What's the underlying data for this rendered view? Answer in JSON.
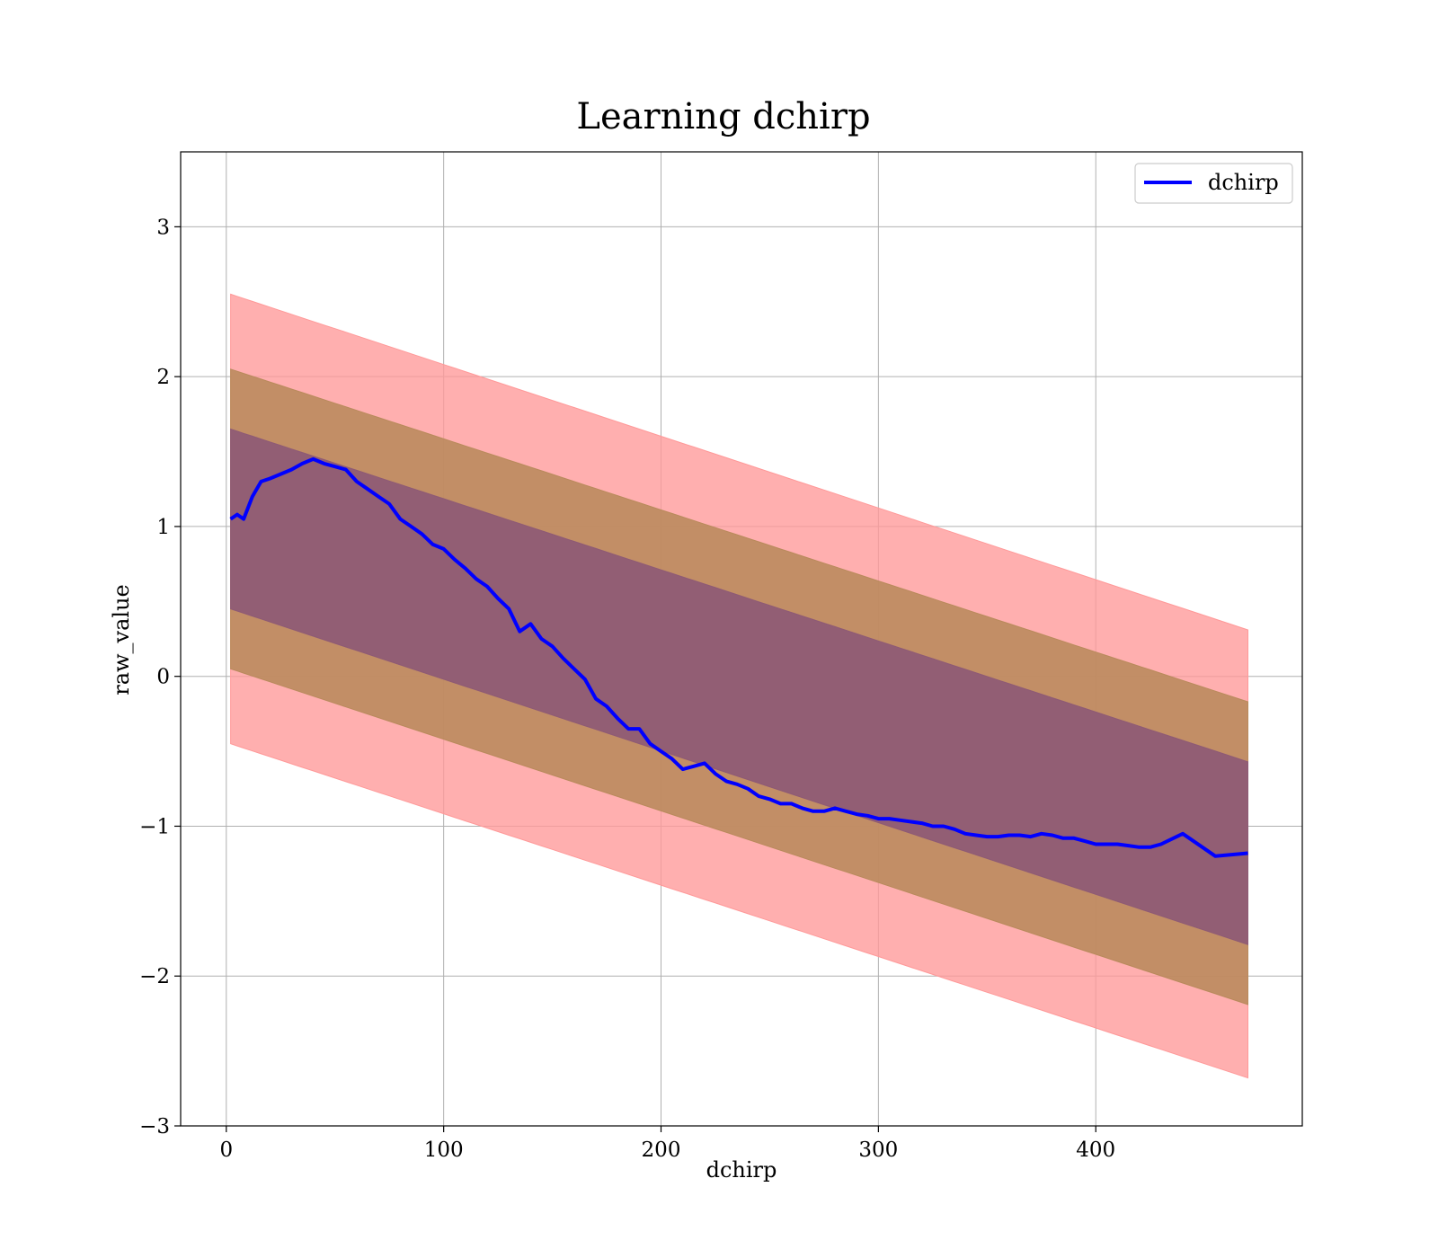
{
  "chart_data": {
    "type": "line",
    "title": "Learning dchirp",
    "xlabel": "dchirp",
    "ylabel": "raw_value",
    "xlim": [
      -21,
      495
    ],
    "ylim": [
      -3,
      3.5
    ],
    "xticks": [
      0,
      100,
      200,
      300,
      400
    ],
    "yticks": [
      -3,
      -2,
      -1,
      0,
      1,
      2,
      3
    ],
    "xtick_labels": [
      "0",
      "100",
      "200",
      "300",
      "400"
    ],
    "ytick_labels": [
      "−3",
      "−2",
      "−1",
      "0",
      "1",
      "2",
      "3"
    ],
    "grid": true,
    "legend": {
      "position": "top-right",
      "entries": [
        "dchirp"
      ]
    },
    "colors": {
      "mean_line": "#0000ff",
      "band_outer": "#ff9999",
      "band_middle": "#b98a5c",
      "band_inner": "#8e5a75"
    },
    "series": [
      {
        "name": "dchirp",
        "x": [
          2,
          5,
          8,
          12,
          16,
          20,
          25,
          30,
          35,
          40,
          45,
          50,
          55,
          60,
          65,
          70,
          75,
          80,
          85,
          90,
          95,
          100,
          105,
          110,
          115,
          120,
          125,
          130,
          135,
          140,
          145,
          150,
          155,
          160,
          165,
          170,
          175,
          180,
          185,
          190,
          195,
          200,
          205,
          210,
          215,
          220,
          225,
          230,
          235,
          240,
          245,
          250,
          255,
          260,
          265,
          270,
          275,
          280,
          285,
          290,
          295,
          300,
          305,
          310,
          315,
          320,
          325,
          330,
          335,
          340,
          345,
          350,
          355,
          360,
          365,
          370,
          375,
          380,
          385,
          390,
          395,
          400,
          405,
          410,
          415,
          420,
          425,
          430,
          440,
          455,
          470
        ],
        "y": [
          1.05,
          1.08,
          1.05,
          1.2,
          1.3,
          1.32,
          1.35,
          1.38,
          1.42,
          1.45,
          1.42,
          1.4,
          1.38,
          1.3,
          1.25,
          1.2,
          1.15,
          1.05,
          1.0,
          0.95,
          0.88,
          0.85,
          0.78,
          0.72,
          0.65,
          0.6,
          0.52,
          0.45,
          0.3,
          0.35,
          0.25,
          0.2,
          0.12,
          0.05,
          -0.02,
          -0.15,
          -0.2,
          -0.28,
          -0.35,
          -0.35,
          -0.45,
          -0.5,
          -0.55,
          -0.62,
          -0.6,
          -0.58,
          -0.65,
          -0.7,
          -0.72,
          -0.75,
          -0.8,
          -0.82,
          -0.85,
          -0.85,
          -0.88,
          -0.9,
          -0.9,
          -0.88,
          -0.9,
          -0.92,
          -0.93,
          -0.95,
          -0.95,
          -0.96,
          -0.97,
          -0.98,
          -1.0,
          -1.0,
          -1.02,
          -1.05,
          -1.06,
          -1.07,
          -1.07,
          -1.06,
          -1.06,
          -1.07,
          -1.05,
          -1.06,
          -1.08,
          -1.08,
          -1.1,
          -1.12,
          -1.12,
          -1.12,
          -1.13,
          -1.14,
          -1.14,
          -1.12,
          -1.05,
          -1.2,
          -1.18
        ]
      }
    ],
    "bands": [
      {
        "role": "outer",
        "x": [
          2,
          470
        ],
        "y_low": [
          -0.45,
          -2.68
        ],
        "y_high": [
          2.55,
          0.31
        ]
      },
      {
        "role": "middle",
        "x": [
          2,
          470
        ],
        "y_low": [
          0.05,
          -2.19
        ],
        "y_high": [
          2.05,
          -0.17
        ]
      },
      {
        "role": "inner",
        "x": [
          2,
          470
        ],
        "y_low": [
          0.45,
          -1.79
        ],
        "y_high": [
          1.65,
          -0.57
        ]
      }
    ]
  }
}
